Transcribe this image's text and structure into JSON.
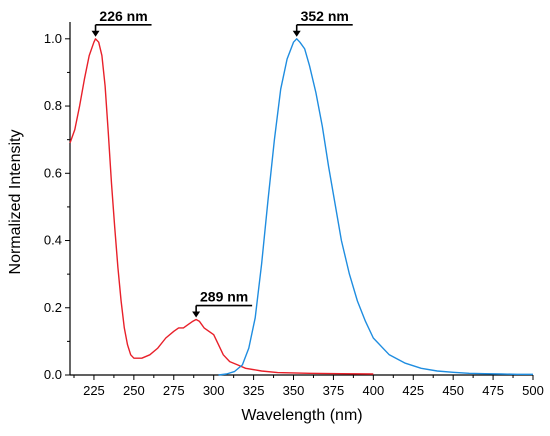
{
  "chart_data": {
    "type": "line",
    "title": "",
    "xlabel": "Wavelength (nm)",
    "ylabel": "Normalized Intensity",
    "xlim": [
      210,
      500
    ],
    "ylim": [
      0.0,
      1.05
    ],
    "x_ticks": [
      225,
      250,
      275,
      300,
      325,
      350,
      375,
      400,
      425,
      450,
      475,
      500
    ],
    "y_ticks": [
      0.0,
      0.2,
      0.4,
      0.6,
      0.8,
      1.0
    ],
    "x_tick_labels": [
      "225",
      "250",
      "275",
      "300",
      "325",
      "350",
      "375",
      "400",
      "425",
      "450",
      "475",
      "500"
    ],
    "y_tick_labels": [
      "0.0",
      "0.2",
      "0.4",
      "0.6",
      "0.8",
      "1.0"
    ],
    "grid": false,
    "legend": "none",
    "series": [
      {
        "color": "#e8202a",
        "points": [
          [
            210,
            0.69
          ],
          [
            213,
            0.73
          ],
          [
            216,
            0.8
          ],
          [
            219,
            0.88
          ],
          [
            222,
            0.95
          ],
          [
            225,
            0.99
          ],
          [
            226,
            1.0
          ],
          [
            228,
            0.99
          ],
          [
            230,
            0.95
          ],
          [
            232,
            0.86
          ],
          [
            234,
            0.72
          ],
          [
            236,
            0.57
          ],
          [
            238,
            0.44
          ],
          [
            240,
            0.32
          ],
          [
            242,
            0.22
          ],
          [
            244,
            0.14
          ],
          [
            246,
            0.09
          ],
          [
            248,
            0.06
          ],
          [
            250,
            0.05
          ],
          [
            255,
            0.05
          ],
          [
            260,
            0.06
          ],
          [
            265,
            0.08
          ],
          [
            270,
            0.11
          ],
          [
            275,
            0.13
          ],
          [
            278,
            0.14
          ],
          [
            281,
            0.14
          ],
          [
            284,
            0.15
          ],
          [
            287,
            0.16
          ],
          [
            289,
            0.165
          ],
          [
            291,
            0.16
          ],
          [
            294,
            0.14
          ],
          [
            297,
            0.13
          ],
          [
            300,
            0.12
          ],
          [
            303,
            0.09
          ],
          [
            306,
            0.06
          ],
          [
            310,
            0.04
          ],
          [
            315,
            0.03
          ],
          [
            320,
            0.02
          ],
          [
            330,
            0.012
          ],
          [
            340,
            0.007
          ],
          [
            360,
            0.005
          ],
          [
            380,
            0.004
          ],
          [
            400,
            0.003
          ]
        ]
      },
      {
        "color": "#1f8de0",
        "points": [
          [
            303,
            0.0
          ],
          [
            308,
            0.003
          ],
          [
            313,
            0.01
          ],
          [
            318,
            0.03
          ],
          [
            322,
            0.08
          ],
          [
            326,
            0.17
          ],
          [
            330,
            0.33
          ],
          [
            334,
            0.52
          ],
          [
            338,
            0.7
          ],
          [
            342,
            0.85
          ],
          [
            346,
            0.94
          ],
          [
            350,
            0.99
          ],
          [
            352,
            1.0
          ],
          [
            354,
            0.99
          ],
          [
            357,
            0.97
          ],
          [
            360,
            0.92
          ],
          [
            364,
            0.84
          ],
          [
            368,
            0.74
          ],
          [
            372,
            0.62
          ],
          [
            376,
            0.51
          ],
          [
            380,
            0.4
          ],
          [
            385,
            0.3
          ],
          [
            390,
            0.22
          ],
          [
            395,
            0.16
          ],
          [
            400,
            0.11
          ],
          [
            410,
            0.06
          ],
          [
            420,
            0.035
          ],
          [
            430,
            0.02
          ],
          [
            440,
            0.012
          ],
          [
            450,
            0.008
          ],
          [
            460,
            0.005
          ],
          [
            470,
            0.004
          ],
          [
            480,
            0.003
          ],
          [
            490,
            0.002
          ],
          [
            500,
            0.002
          ]
        ]
      }
    ],
    "annotations": [
      {
        "text": "226 nm",
        "x": 226,
        "y": 1.0
      },
      {
        "text": "289 nm",
        "x": 289,
        "y": 0.165
      },
      {
        "text": "352 nm",
        "x": 352,
        "y": 1.0
      }
    ]
  }
}
